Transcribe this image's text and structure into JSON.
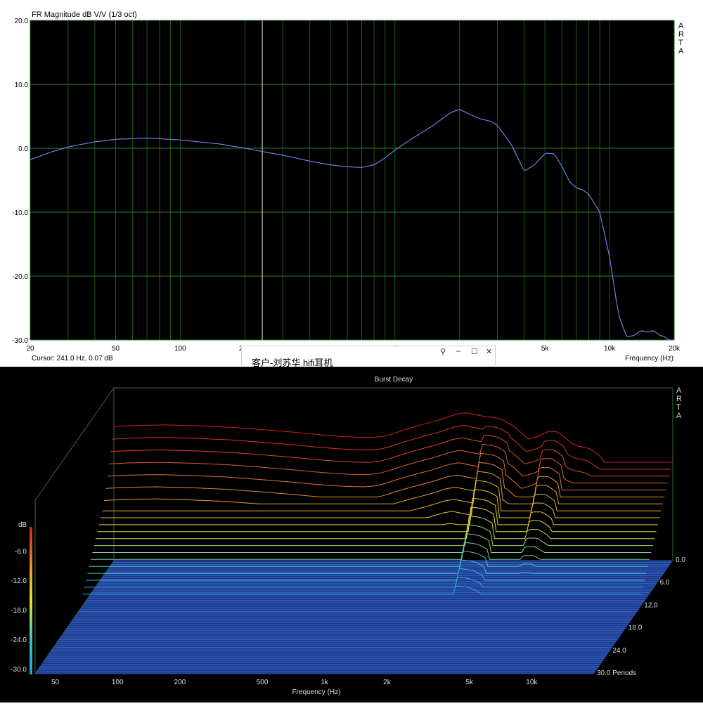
{
  "app": {
    "name_vertical": "ARTA"
  },
  "window_overlay": {
    "title": "客户-刘苏华 hifi耳机",
    "buttons": {
      "pin": "⚲",
      "minimize": "–",
      "maximize": "☐",
      "close": "✕"
    }
  },
  "chart_data": [
    {
      "type": "line",
      "title": "FR Magnitude dB V/V (1/3 oct)",
      "xlabel": "Frequency (Hz)",
      "ylabel": "",
      "xscale": "log",
      "xlim": [
        20,
        20000
      ],
      "ylim": [
        -30,
        20
      ],
      "x_ticks": [
        {
          "v": 20,
          "label": "20"
        },
        {
          "v": 50,
          "label": "50"
        },
        {
          "v": 100,
          "label": "100"
        },
        {
          "v": 200,
          "label": "200"
        },
        {
          "v": 500,
          "label": "500"
        },
        {
          "v": 1000,
          "label": "1k"
        },
        {
          "v": 2000,
          "label": "2k"
        },
        {
          "v": 5000,
          "label": "5k"
        },
        {
          "v": 10000,
          "label": "10k"
        },
        {
          "v": 20000,
          "label": "20k"
        }
      ],
      "y_ticks": [
        {
          "v": 20,
          "label": "20.0"
        },
        {
          "v": 10,
          "label": "10.0"
        },
        {
          "v": 0,
          "label": "0.0"
        },
        {
          "v": -10,
          "label": "-10.0"
        },
        {
          "v": -20,
          "label": "-20.0"
        },
        {
          "v": -30,
          "label": "-30.0"
        }
      ],
      "grid": true,
      "cursor": {
        "freq": 241.0,
        "db": 0.07,
        "label": "Cursor: 241.0 Hz, 0.07 dB"
      },
      "series": [
        {
          "color": "#7a7ae0",
          "x": [
            20,
            25,
            30,
            40,
            50,
            70,
            100,
            150,
            200,
            300,
            400,
            500,
            600,
            700,
            800,
            900,
            1000,
            1200,
            1500,
            1800,
            2000,
            2200,
            2500,
            2800,
            3000,
            3500,
            4000,
            4500,
            5000,
            5500,
            6000,
            6500,
            7000,
            7500,
            8000,
            9000,
            10000,
            11000,
            12000,
            13000,
            14000,
            15000,
            16000,
            17000,
            18000,
            19000,
            20000
          ],
          "y": [
            -1.8,
            -0.6,
            0.2,
            1.0,
            1.4,
            1.6,
            1.3,
            0.7,
            0.0,
            -1.1,
            -2.0,
            -2.6,
            -2.9,
            -3.0,
            -2.6,
            -1.5,
            -0.3,
            1.5,
            3.5,
            5.5,
            6.1,
            5.4,
            4.6,
            4.2,
            3.6,
            0.5,
            -3.6,
            -2.5,
            -0.8,
            -0.8,
            -2.8,
            -5.2,
            -6.2,
            -6.5,
            -7.2,
            -10.0,
            -17.0,
            -26.0,
            -29.5,
            -29.3,
            -28.5,
            -28.8,
            -28.5,
            -29.2,
            -29.5,
            -30.0,
            -30.5
          ]
        }
      ]
    },
    {
      "type": "waterfall",
      "title": "Burst Decay",
      "xlabel": "Frequency (Hz)",
      "xscale": "log",
      "xlim": [
        40,
        20000
      ],
      "x_ticks": [
        {
          "v": 50,
          "label": "50"
        },
        {
          "v": 100,
          "label": "100"
        },
        {
          "v": 200,
          "label": "200"
        },
        {
          "v": 500,
          "label": "500"
        },
        {
          "v": 1000,
          "label": "1k"
        },
        {
          "v": 2000,
          "label": "2k"
        },
        {
          "v": 5000,
          "label": "5k"
        },
        {
          "v": 10000,
          "label": "10k"
        }
      ],
      "z_ticks": [
        {
          "v": 0,
          "label": "0.0"
        },
        {
          "v": 6,
          "label": "6.0"
        },
        {
          "v": 12,
          "label": "12.0"
        },
        {
          "v": 18,
          "label": "18.0"
        },
        {
          "v": 24,
          "label": "24.0"
        },
        {
          "v": 30,
          "label": "30.0 Periods"
        }
      ],
      "zlim": [
        0,
        30
      ],
      "colorbar": {
        "label": "dB",
        "ticks": [
          "-6.0",
          "-12.0",
          "-18.0",
          "-24.0",
          "-30.0"
        ],
        "range": [
          0,
          -30
        ]
      },
      "num_slices": 20,
      "decay_db_per_slice": 1.5,
      "floor_db": -30
    }
  ]
}
